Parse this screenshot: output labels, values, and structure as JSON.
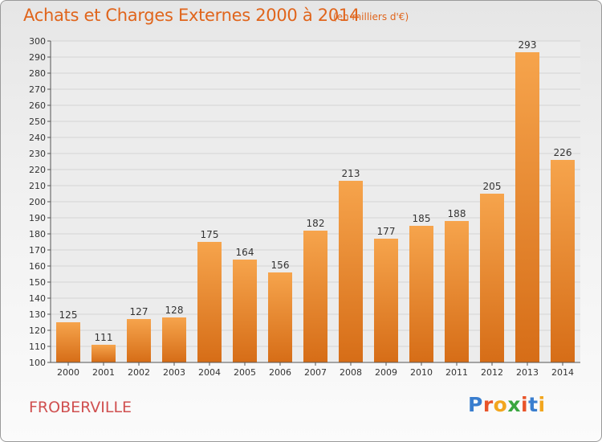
{
  "header": {
    "title": "Achats et Charges Externes 2000 à 2014",
    "unit": "(en milliers d'€)"
  },
  "footer": {
    "town": "FROBERVILLE",
    "logo_letters": [
      {
        "ch": "P",
        "color": "#3a7ecf"
      },
      {
        "ch": "r",
        "color": "#e8542a"
      },
      {
        "ch": "o",
        "color": "#f2a61e"
      },
      {
        "ch": "x",
        "color": "#3aa63f"
      },
      {
        "ch": "i",
        "color": "#e8542a"
      },
      {
        "ch": "t",
        "color": "#3a7ecf"
      },
      {
        "ch": "i",
        "color": "#f2a61e"
      }
    ]
  },
  "colors": {
    "title": "#e0651c",
    "bar_light": "#f6a44c",
    "bar_dark": "#d66d17",
    "grid": "#d4d4d4",
    "town": "#d05050"
  },
  "chart_data": {
    "type": "bar",
    "categories": [
      "2000",
      "2001",
      "2002",
      "2003",
      "2004",
      "2005",
      "2006",
      "2007",
      "2008",
      "2009",
      "2010",
      "2011",
      "2012",
      "2013",
      "2014"
    ],
    "values": [
      125,
      111,
      127,
      128,
      175,
      164,
      156,
      182,
      213,
      177,
      185,
      188,
      205,
      293,
      226
    ],
    "ylim": [
      100,
      300
    ],
    "ytick_step": 10,
    "grid": true,
    "legend": "none"
  }
}
